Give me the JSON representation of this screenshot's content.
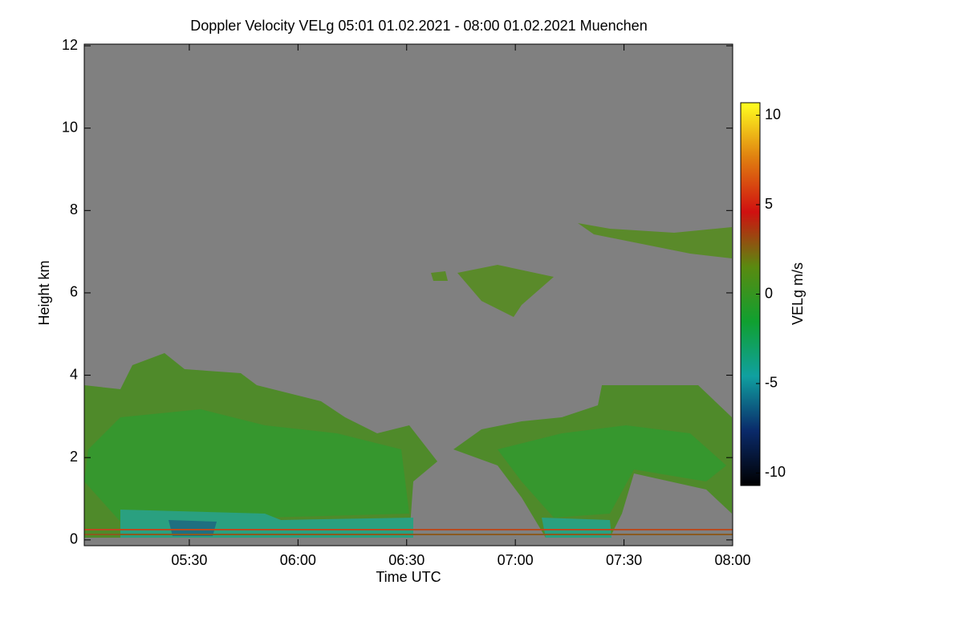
{
  "chart_data": {
    "type": "heatmap",
    "title": "Doppler Velocity VELg   05:01 01.02.2021 - 08:00 01.02.2021 Muenchen",
    "x_label": "Time UTC",
    "y_label": "Height km",
    "xlim": [
      "05:01",
      "08:00"
    ],
    "xticks": [
      "05:30",
      "06:00",
      "06:30",
      "07:00",
      "07:30",
      "08:00"
    ],
    "ylim": [
      -0.14,
      12.04
    ],
    "yticks": [
      0,
      2,
      4,
      6,
      8,
      10,
      12
    ],
    "colorbar_label": "VELg m/s",
    "zlim": [
      -10.7,
      10.7
    ],
    "zticks": [
      -10,
      -5,
      0,
      5,
      10
    ],
    "colormap": [
      "#000000",
      "#0a2a6a",
      "#10a0a0",
      "#10a030",
      "#5a8a10",
      "#d01010",
      "#e08010",
      "#ffff20"
    ],
    "background": "#808080"
  }
}
